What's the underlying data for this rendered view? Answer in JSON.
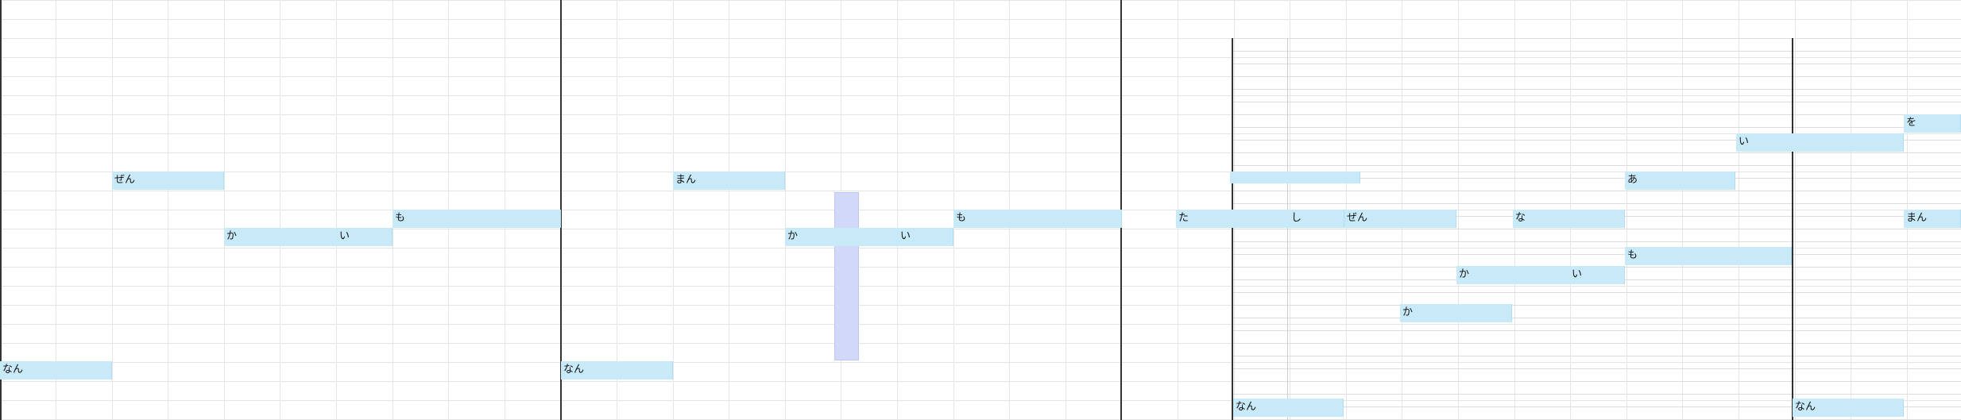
{
  "piano_roll": {
    "background": "#ffffff",
    "note_color": "#c8eaf8",
    "bar_line_color": "#333333",
    "grid_color": "#e4e4e4",
    "playhead_color": "#d2d9f8",
    "notes": [
      {
        "id": "n1",
        "lyric": "ぜん"
      },
      {
        "id": "n2",
        "lyric": "か"
      },
      {
        "id": "n3",
        "lyric": "い"
      },
      {
        "id": "n4",
        "lyric": "も"
      },
      {
        "id": "n5",
        "lyric": "なん"
      },
      {
        "id": "n6",
        "lyric": "まん"
      },
      {
        "id": "n7",
        "lyric": "か"
      },
      {
        "id": "n8",
        "lyric": "い"
      },
      {
        "id": "n9",
        "lyric": "も"
      },
      {
        "id": "n10",
        "lyric": "なん"
      },
      {
        "id": "n11",
        "lyric": ""
      },
      {
        "id": "n12",
        "lyric": "た"
      },
      {
        "id": "n13",
        "lyric": "し"
      },
      {
        "id": "n14",
        "lyric": "ぜん"
      },
      {
        "id": "n15",
        "lyric": "な"
      },
      {
        "id": "n16",
        "lyric": "あ"
      },
      {
        "id": "n17",
        "lyric": "い"
      },
      {
        "id": "n18",
        "lyric": "を"
      },
      {
        "id": "n19",
        "lyric": "まん"
      },
      {
        "id": "n20",
        "lyric": "も"
      },
      {
        "id": "n21",
        "lyric": "か"
      },
      {
        "id": "n22",
        "lyric": "い"
      },
      {
        "id": "n23",
        "lyric": "か"
      },
      {
        "id": "n24",
        "lyric": "なん"
      },
      {
        "id": "n25",
        "lyric": "なん"
      }
    ]
  }
}
